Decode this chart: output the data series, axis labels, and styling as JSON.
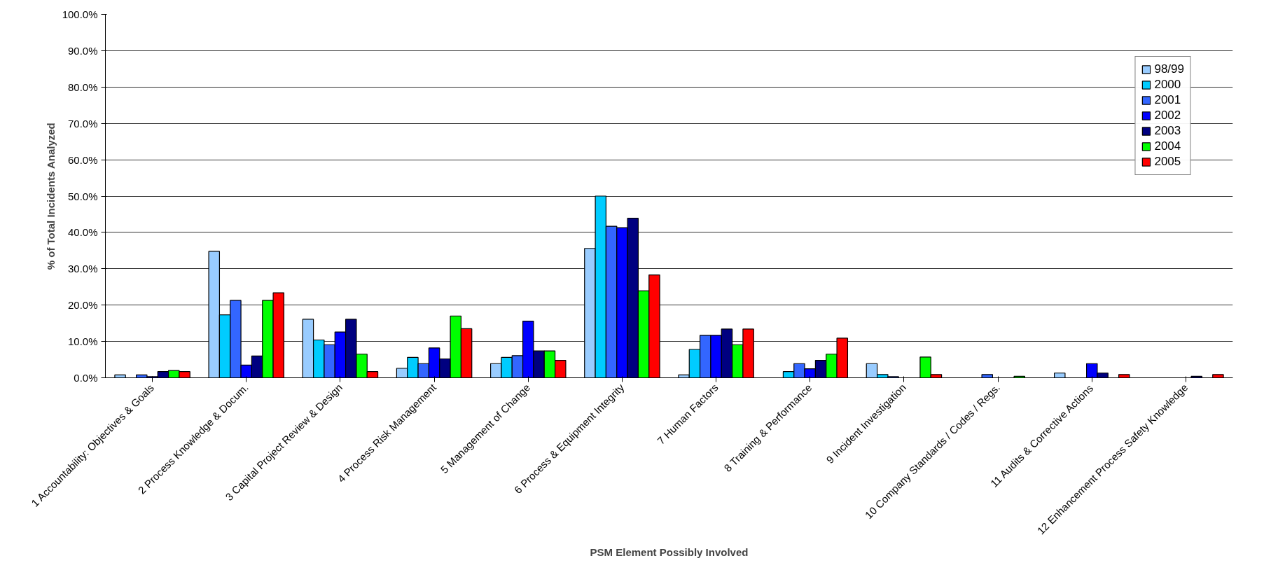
{
  "chart_data": {
    "type": "bar",
    "xlabel": "PSM Element Possibly Involved",
    "ylabel": "% of Total Incidents Analyzed",
    "categories": [
      "1 Accountability: Objectives & Goals",
      "2 Process Knowledge & Docum.",
      "3 Capital Project Review & Design",
      "4 Process Risk Management",
      "5 Management of Change",
      "6 Process & Equipment Integrity",
      "7 Human Factors",
      "8 Training & Performance",
      "9 Incident Investigation",
      "10 Company Standards / Codes / Regs.",
      "11 Audits & Corrective Actions",
      "12 Enhancement Process Safety Knowledge"
    ],
    "series": [
      {
        "name": "98/99",
        "color": "#99ccff",
        "values": [
          0.8,
          34.8,
          16.1,
          2.6,
          3.9,
          35.6,
          0.8,
          null,
          3.9,
          null,
          1.3,
          null
        ]
      },
      {
        "name": "2000",
        "color": "#00ccff",
        "values": [
          null,
          17.3,
          10.4,
          5.6,
          5.6,
          50.0,
          7.8,
          1.7,
          0.9,
          null,
          null,
          null
        ]
      },
      {
        "name": "2001",
        "color": "#3366ff",
        "values": [
          0.8,
          21.3,
          9.1,
          3.9,
          6.1,
          41.7,
          11.7,
          3.9,
          0.3,
          0.9,
          null,
          null
        ]
      },
      {
        "name": "2002",
        "color": "#0000ff",
        "values": [
          0.3,
          3.5,
          12.6,
          8.2,
          15.6,
          41.3,
          11.7,
          2.5,
          null,
          null,
          3.9,
          null
        ]
      },
      {
        "name": "2003",
        "color": "#000080",
        "values": [
          1.7,
          6.0,
          16.1,
          5.2,
          7.4,
          43.9,
          13.4,
          4.8,
          null,
          null,
          1.3,
          0.4
        ]
      },
      {
        "name": "2004",
        "color": "#00ff00",
        "values": [
          2.0,
          21.3,
          6.5,
          17.0,
          7.4,
          23.9,
          9.1,
          6.5,
          5.7,
          0.4,
          null,
          null
        ]
      },
      {
        "name": "2005",
        "color": "#ff0000",
        "values": [
          1.7,
          23.4,
          1.7,
          13.5,
          4.8,
          28.3,
          13.4,
          10.9,
          0.9,
          null,
          0.9,
          0.9
        ]
      }
    ],
    "ylim": [
      0,
      100
    ],
    "yticks": [
      {
        "value": 0,
        "label": "0.0%"
      },
      {
        "value": 10,
        "label": "10.0%"
      },
      {
        "value": 20,
        "label": "20.0%"
      },
      {
        "value": 30,
        "label": "30.0%"
      },
      {
        "value": 40,
        "label": "40.0%"
      },
      {
        "value": 50,
        "label": "50.0%"
      },
      {
        "value": 60,
        "label": "60.0%"
      },
      {
        "value": 70,
        "label": "70.0%"
      },
      {
        "value": 80,
        "label": "80.0%"
      },
      {
        "value": 90,
        "label": "90.0%"
      },
      {
        "value": 100,
        "label": "100.0%"
      }
    ],
    "grid": "y",
    "legend": "top right"
  }
}
